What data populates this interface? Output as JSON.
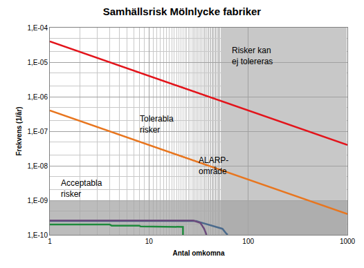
{
  "chart_data": {
    "type": "line",
    "title": "Samhällsrisk Mölnlycke fabriker",
    "x_label": "Antal omkomna",
    "y_label": "Frekvens (1/år)",
    "log": true,
    "grid": true,
    "xlim": [
      1,
      1000
    ],
    "ylim": [
      1e-10,
      0.0001
    ],
    "xticks": [
      1,
      10,
      100,
      1000
    ],
    "yticks": [
      {
        "value": 1e-10,
        "label": "1,E-10"
      },
      {
        "value": 1e-09,
        "label": "1,E-09"
      },
      {
        "value": 1e-08,
        "label": "1,E-08"
      },
      {
        "value": 1e-07,
        "label": "1,E-07"
      },
      {
        "value": 1e-06,
        "label": "1,E-06"
      },
      {
        "value": 1e-05,
        "label": "1,E-05"
      },
      {
        "value": 0.0001,
        "label": "1,E-04"
      }
    ],
    "series": [
      {
        "type": "area",
        "color": "#a6a6a6",
        "x": [
          1,
          1000
        ],
        "values": [
          1e-09,
          1e-09
        ]
      },
      {
        "color": "#e3141b",
        "x": [
          1,
          1000
        ],
        "values": [
          4e-05,
          4e-08
        ]
      },
      {
        "color": "#e8761f",
        "x": [
          1,
          1000
        ],
        "values": [
          4e-07,
          4e-10
        ]
      },
      {
        "color": "#4a6a8c",
        "x": [
          1,
          30,
          33,
          55,
          60,
          62
        ],
        "values": [
          2.5e-10,
          2.5e-10,
          2.3e-10,
          1.5e-10,
          1.1e-10,
          1e-10
        ]
      },
      {
        "color": "#6b4a7c",
        "x": [
          1,
          28,
          33,
          36,
          38
        ],
        "values": [
          2.6e-10,
          2.6e-10,
          2.2e-10,
          1.5e-10,
          1e-10
        ]
      },
      {
        "color": "#1e8a3c",
        "x": [
          1,
          4,
          4.2,
          8,
          8.2,
          20,
          22,
          22
        ],
        "values": [
          2e-10,
          2e-10,
          1.85e-10,
          1.85e-10,
          1.75e-10,
          1.75e-10,
          1.7e-10,
          1e-10
        ]
      }
    ],
    "annotations": [
      {
        "text": "Risker kan\nej tolereras",
        "x": 110,
        "y": 1.5e-05
      },
      {
        "text": "Tolerabla\nrisker",
        "x": 12,
        "y": 1.6e-07
      },
      {
        "text": "ALARP-\nområde",
        "x": 45,
        "y": 1e-08
      },
      {
        "text": "Acceptabla\nrisker",
        "x": 2.1,
        "y": 2.2e-09
      }
    ]
  }
}
